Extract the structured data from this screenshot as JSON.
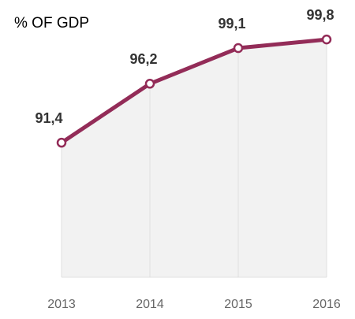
{
  "chart_data": {
    "type": "line",
    "title": "% OF GDP",
    "categories": [
      "2013",
      "2014",
      "2015",
      "2016"
    ],
    "series": [
      {
        "name": null,
        "color": "#932c58",
        "values": [
          91.4,
          96.2,
          99.1,
          99.8
        ],
        "value_labels": [
          "91,4",
          "96,2",
          "99,1",
          "99,8"
        ]
      }
    ],
    "ylim": [
      80,
      100
    ],
    "area": true,
    "area_color": "#f2f2f2"
  }
}
